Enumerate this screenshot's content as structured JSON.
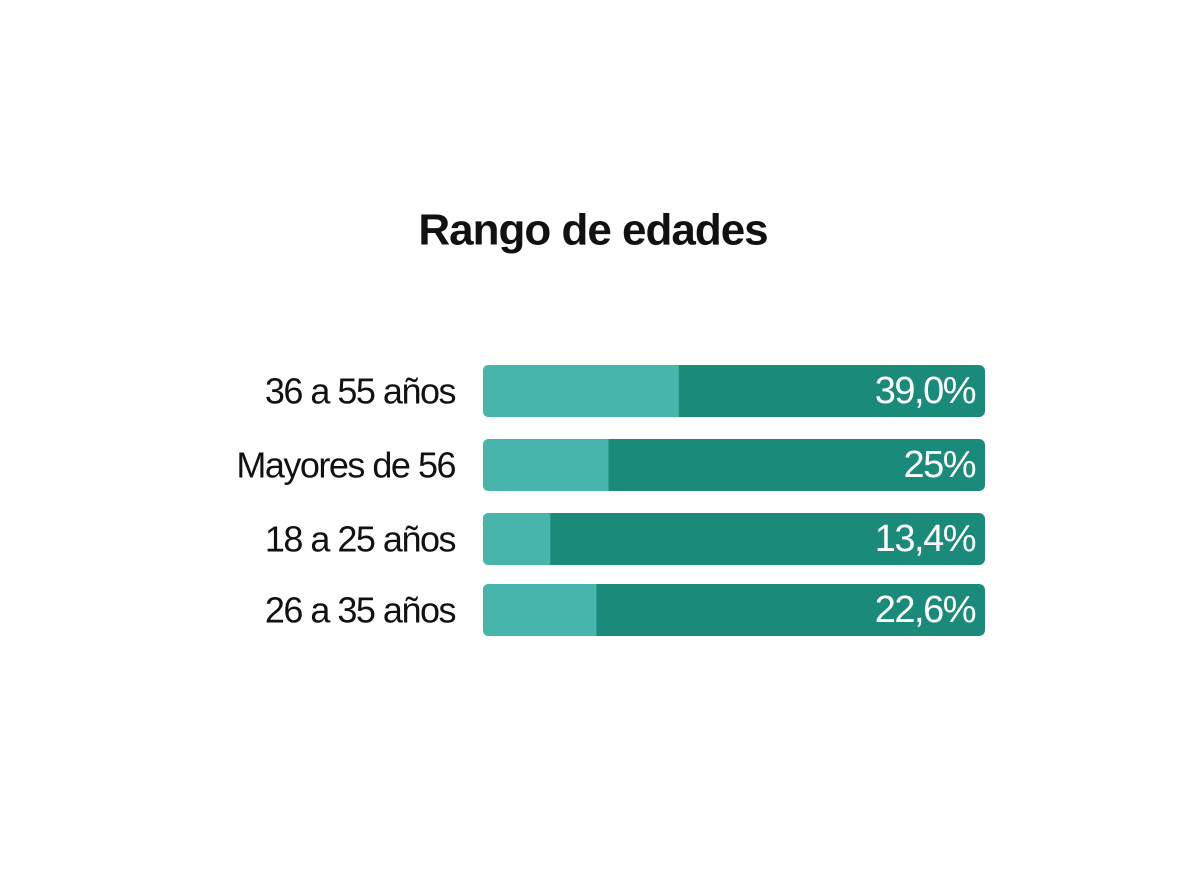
{
  "chart_data": {
    "type": "bar",
    "orientation": "horizontal",
    "title": "Rango de edades",
    "categories": [
      "36 a 55 años",
      "Mayores de 56",
      "18 a 25 años",
      "26 a 35 años"
    ],
    "values": [
      39.0,
      25,
      13.4,
      22.6
    ],
    "value_labels": [
      "39,0%",
      "25%",
      "13,4%",
      "22,6%"
    ],
    "xlim": [
      0,
      100
    ],
    "color": "#48b5ac",
    "track_color": "#1a8a7a"
  }
}
